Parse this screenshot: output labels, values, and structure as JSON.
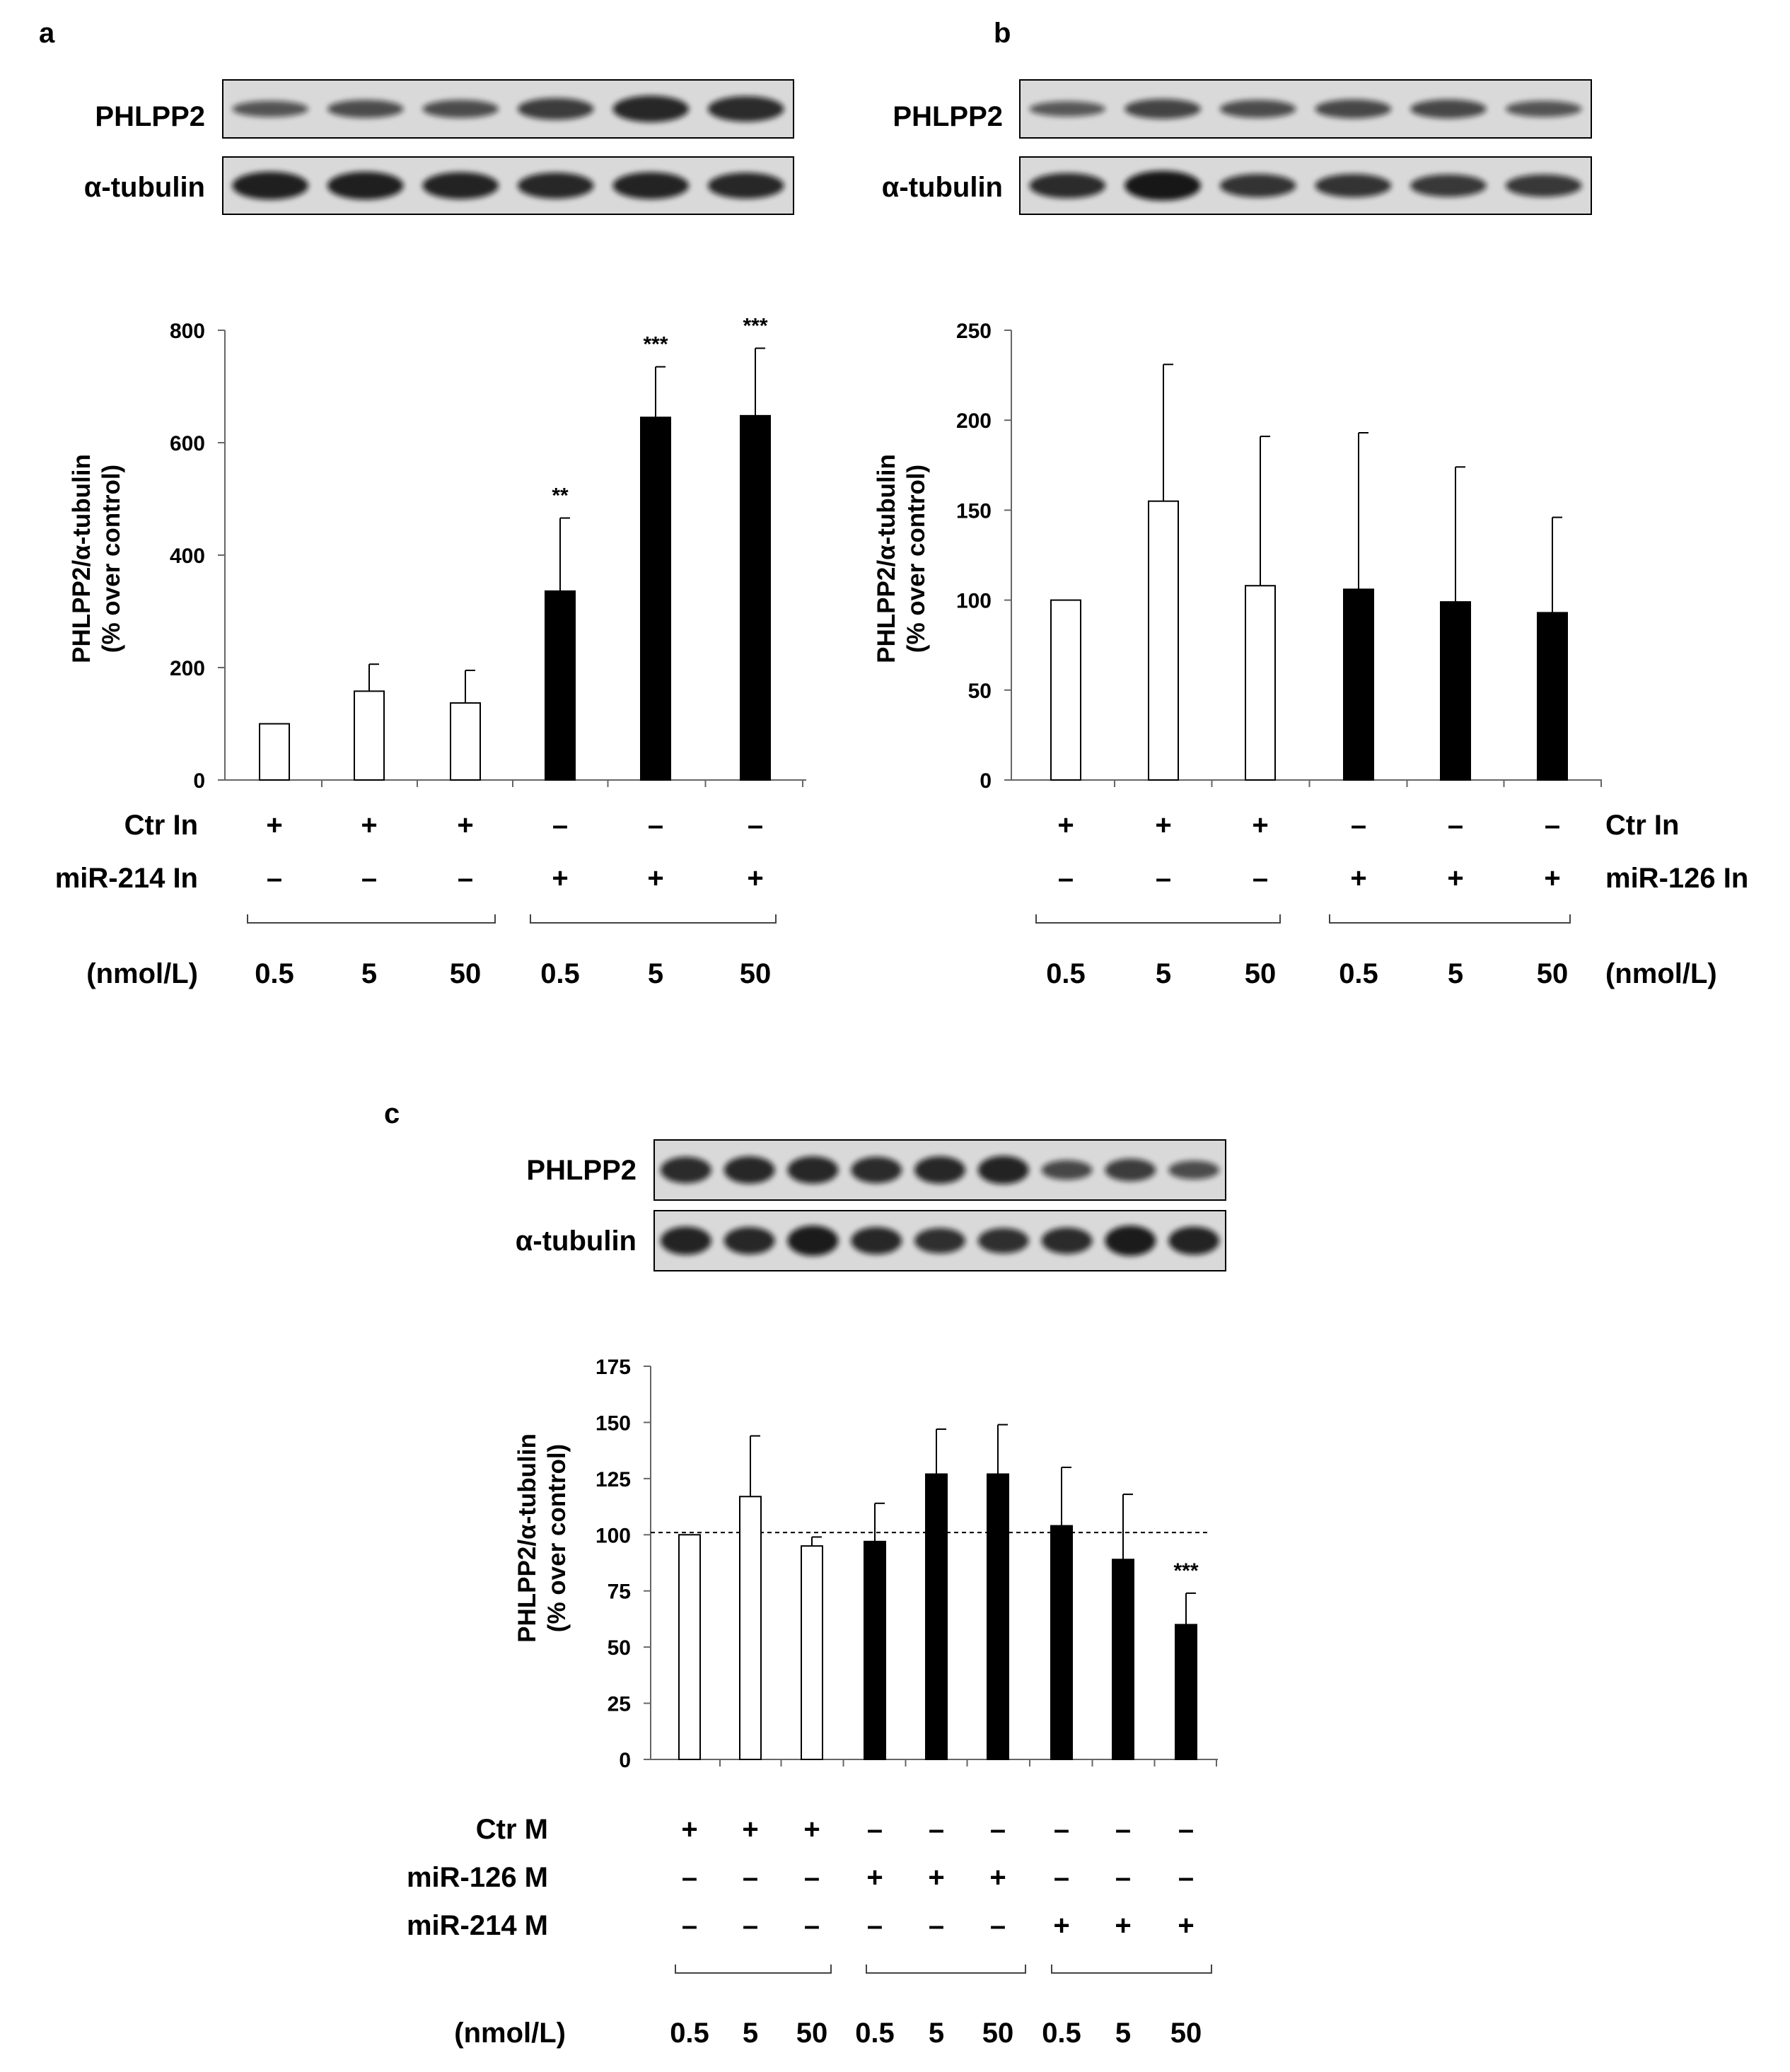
{
  "panels": [
    {
      "label": "a",
      "blot_rows": [
        "PHLPP2",
        "α-tubulin"
      ],
      "ylabel_line1": "PHLPP2/α-tubulin",
      "ylabel_line2": "(% over control)",
      "treatment_rows": [
        {
          "label": "Ctr In",
          "signs": [
            "+",
            "+",
            "+",
            "–",
            "–",
            "–"
          ]
        },
        {
          "label": "miR-214 In",
          "signs": [
            "–",
            "–",
            "–",
            "+",
            "+",
            "+"
          ]
        }
      ],
      "conc_label": "(nmol/L)",
      "concentrations": [
        "0.5",
        "5",
        "50",
        "0.5",
        "5",
        "50"
      ],
      "chart_data": {
        "type": "bar",
        "categories": [
          "0.5",
          "5",
          "50",
          "0.5",
          "5",
          "50"
        ],
        "values": [
          100,
          158,
          137,
          336,
          645,
          648
        ],
        "errors": [
          0,
          48,
          58,
          130,
          90,
          120
        ],
        "fill": [
          "white",
          "white",
          "white",
          "black",
          "black",
          "black"
        ],
        "significance": [
          "",
          "",
          "",
          "**",
          "***",
          "***"
        ],
        "ylim": [
          0,
          800
        ],
        "yticks": [
          0,
          200,
          400,
          600,
          800
        ]
      }
    },
    {
      "label": "b",
      "blot_rows": [
        "PHLPP2",
        "α-tubulin"
      ],
      "ylabel_line1": "PHLPP2/α-tubulin",
      "ylabel_line2": "(% over control)",
      "treatment_rows": [
        {
          "label": "Ctr In",
          "signs": [
            "+",
            "+",
            "+",
            "–",
            "–",
            "–"
          ]
        },
        {
          "label": "miR-126 In",
          "signs": [
            "–",
            "–",
            "–",
            "+",
            "+",
            "+"
          ]
        }
      ],
      "conc_label": "(nmol/L)",
      "concentrations": [
        "0.5",
        "5",
        "50",
        "0.5",
        "5",
        "50"
      ],
      "chart_data": {
        "type": "bar",
        "categories": [
          "0.5",
          "5",
          "50",
          "0.5",
          "5",
          "50"
        ],
        "values": [
          100,
          155,
          108,
          106,
          99,
          93
        ],
        "errors": [
          0,
          76,
          83,
          87,
          75,
          53
        ],
        "fill": [
          "white",
          "white",
          "white",
          "black",
          "black",
          "black"
        ],
        "significance": [
          "",
          "",
          "",
          "",
          "",
          ""
        ],
        "ylim": [
          0,
          250
        ],
        "yticks": [
          0,
          50,
          100,
          150,
          200,
          250
        ]
      }
    },
    {
      "label": "c",
      "blot_rows": [
        "PHLPP2",
        "α-tubulin"
      ],
      "ylabel_line1": "PHLPP2/α-tubulin",
      "ylabel_line2": "(% over control)",
      "treatment_rows": [
        {
          "label": "Ctr M",
          "signs": [
            "+",
            "+",
            "+",
            "–",
            "–",
            "–",
            "–",
            "–",
            "–"
          ]
        },
        {
          "label": "miR-126 M",
          "signs": [
            "–",
            "–",
            "–",
            "+",
            "+",
            "+",
            "–",
            "–",
            "–"
          ]
        },
        {
          "label": "miR-214 M",
          "signs": [
            "–",
            "–",
            "–",
            "–",
            "–",
            "–",
            "+",
            "+",
            "+"
          ]
        }
      ],
      "conc_label": "(nmol/L)",
      "concentrations": [
        "0.5",
        "5",
        "50",
        "0.5",
        "5",
        "50",
        "0.5",
        "5",
        "50"
      ],
      "chart_data": {
        "type": "bar",
        "categories": [
          "0.5",
          "5",
          "50",
          "0.5",
          "5",
          "50",
          "0.5",
          "5",
          "50"
        ],
        "values": [
          100,
          117,
          95,
          97,
          127,
          127,
          104,
          89,
          60
        ],
        "errors": [
          0,
          27,
          4,
          17,
          20,
          22,
          26,
          29,
          14
        ],
        "fill": [
          "white",
          "white",
          "white",
          "black",
          "black",
          "black",
          "black",
          "black",
          "black"
        ],
        "significance": [
          "",
          "",
          "",
          "",
          "",
          "",
          "",
          "",
          "***"
        ],
        "reference_line": 101,
        "ylim": [
          0,
          175
        ],
        "yticks": [
          0,
          25,
          50,
          75,
          100,
          125,
          150,
          175
        ]
      }
    }
  ]
}
